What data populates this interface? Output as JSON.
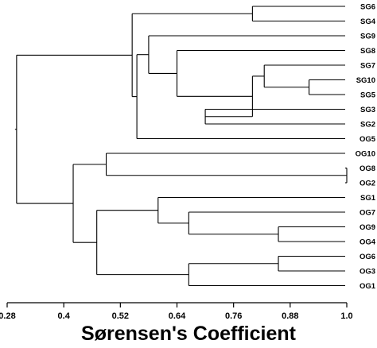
{
  "chart_data": {
    "type": "dendrogram",
    "xlabel": "Sørensen's Coefficient",
    "xlim": [
      0.28,
      1.0
    ],
    "xticks": [
      "0.28",
      "0.4",
      "0.52",
      "0.64",
      "0.76",
      "0.88",
      "1.0"
    ],
    "xtick_values": [
      0.28,
      0.4,
      0.52,
      0.64,
      0.76,
      0.88,
      1.0
    ],
    "leaves": [
      "SG6",
      "SG4",
      "SG9",
      "SG8",
      "SG7",
      "SG10",
      "SG5",
      "SG3",
      "SG2",
      "OG5",
      "OG10",
      "OG8",
      "OG2",
      "SG1",
      "OG7",
      "OG9",
      "OG4",
      "OG6",
      "OG3",
      "OG1"
    ],
    "merges": [
      {
        "id": "m_sg6_sg4",
        "children": [
          "SG6",
          "SG4"
        ],
        "similarity": 0.8
      },
      {
        "id": "m_sg10_sg5",
        "children": [
          "SG10",
          "SG5"
        ],
        "similarity": 0.92
      },
      {
        "id": "m_sg7_m",
        "children": [
          "SG7",
          "m_sg10_sg5"
        ],
        "similarity": 0.825
      },
      {
        "id": "m_sg3_sg2",
        "children": [
          "SG3",
          "SG2"
        ],
        "similarity": 0.7
      },
      {
        "id": "m_sg7grp_sg3grp",
        "children": [
          "m_sg7_m",
          "m_sg3_sg2"
        ],
        "similarity": 0.8
      },
      {
        "id": "m_sg8_grp",
        "children": [
          "SG8",
          "m_sg7grp_sg3grp"
        ],
        "similarity": 0.64
      },
      {
        "id": "m_sg9_grp",
        "children": [
          "SG9",
          "m_sg8_grp"
        ],
        "similarity": 0.58
      },
      {
        "id": "m_grp_og5",
        "children": [
          "m_sg9_grp",
          "OG5"
        ],
        "similarity": 0.555
      },
      {
        "id": "m_sg_top",
        "children": [
          "m_sg6_sg4",
          "m_grp_og5"
        ],
        "similarity": 0.545
      },
      {
        "id": "m_og8_og2",
        "children": [
          "OG8",
          "OG2"
        ],
        "similarity": 1.0
      },
      {
        "id": "m_og10_grp",
        "children": [
          "OG10",
          "m_og8_og2"
        ],
        "similarity": 0.49
      },
      {
        "id": "m_og9_og4",
        "children": [
          "OG9",
          "OG4"
        ],
        "similarity": 0.855
      },
      {
        "id": "m_og7_grp",
        "children": [
          "OG7",
          "m_og9_og4"
        ],
        "similarity": 0.665
      },
      {
        "id": "m_sg1_grp",
        "children": [
          "SG1",
          "m_og7_grp"
        ],
        "similarity": 0.6
      },
      {
        "id": "m_og6_og3",
        "children": [
          "OG6",
          "OG3"
        ],
        "similarity": 0.855
      },
      {
        "id": "m_og6grp_og1",
        "children": [
          "m_og6_og3",
          "OG1"
        ],
        "similarity": 0.665
      },
      {
        "id": "m_sg1grp_og6grp",
        "children": [
          "m_sg1_grp",
          "m_og6grp_og1"
        ],
        "similarity": 0.47
      },
      {
        "id": "m_og_top",
        "children": [
          "m_og10_grp",
          "m_sg1grp_og6grp"
        ],
        "similarity": 0.42
      },
      {
        "id": "m_root",
        "children": [
          "m_sg_top",
          "m_og_top"
        ],
        "similarity": 0.3
      }
    ]
  }
}
